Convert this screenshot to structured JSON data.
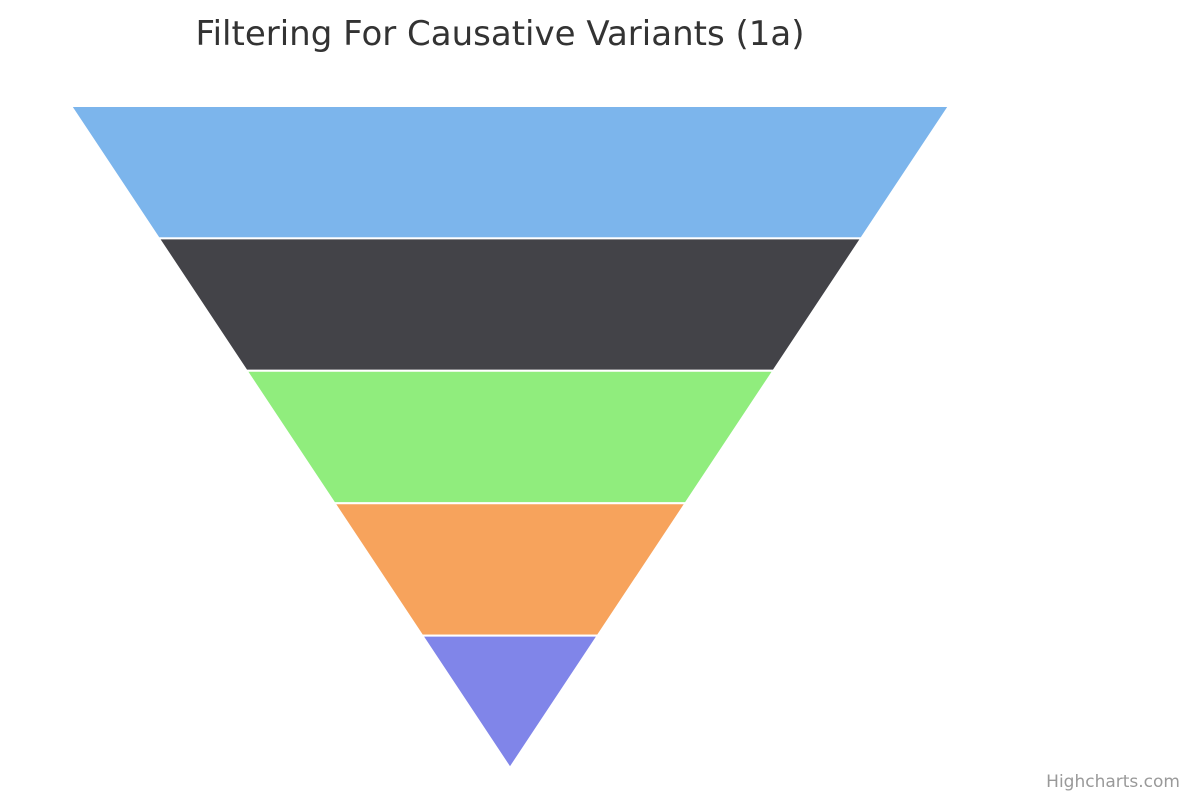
{
  "chart_data": {
    "type": "funnel",
    "title": "Filtering For Causative Variants (1a)",
    "stages": [
      {
        "color": "#7cb5ec"
      },
      {
        "color": "#434348"
      },
      {
        "color": "#90ed7d"
      },
      {
        "color": "#f7a35c"
      },
      {
        "color": "#8085e9"
      }
    ]
  },
  "credits": {
    "text": "Highcharts.com"
  }
}
